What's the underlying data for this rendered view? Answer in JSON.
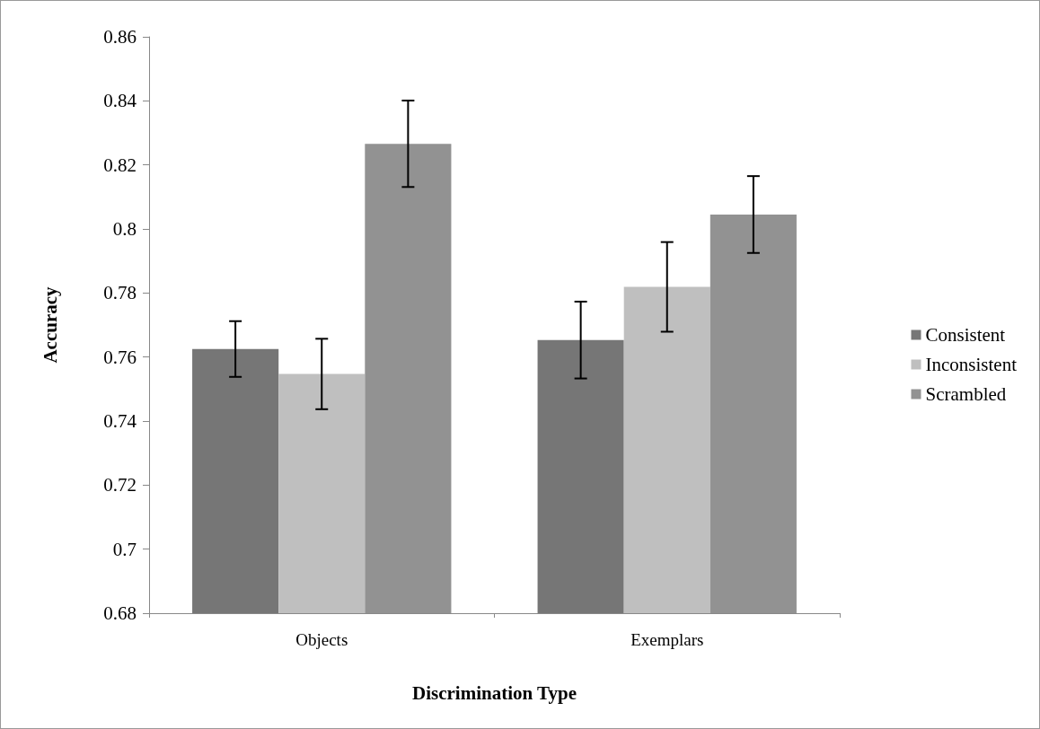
{
  "chart_data": {
    "type": "bar",
    "xlabel": "Discrimination Type",
    "ylabel": "Accuracy",
    "categories": [
      "Objects",
      "Exemplars"
    ],
    "series": [
      {
        "name": "Consistent",
        "color": "#767676",
        "values": [
          0.7625,
          0.7653
        ],
        "errors": [
          0.0087,
          0.012
        ]
      },
      {
        "name": "Inconsistent",
        "color": "#bfbfbf",
        "values": [
          0.7547,
          0.7819
        ],
        "errors": [
          0.011,
          0.014
        ]
      },
      {
        "name": "Scrambled",
        "color": "#929292",
        "values": [
          0.8266,
          0.8045
        ],
        "errors": [
          0.0135,
          0.012
        ]
      }
    ],
    "ylim": [
      0.68,
      0.86
    ],
    "yticks": [
      0.68,
      0.7,
      0.72,
      0.74,
      0.76,
      0.78,
      0.8,
      0.82,
      0.84,
      0.86
    ],
    "grid": false,
    "legend": "right"
  }
}
